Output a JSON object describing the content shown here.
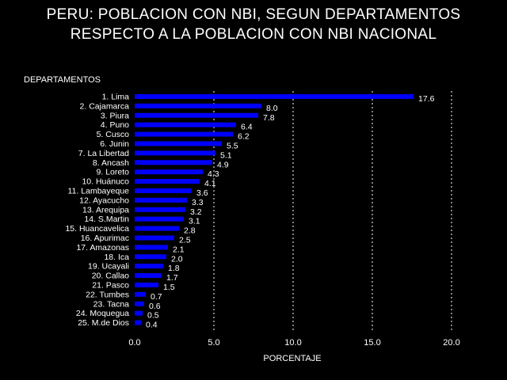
{
  "title_line1": "PERU: POBLACION CON NBI, SEGUN DEPARTAMENTOS",
  "title_line2": "RESPECTO A LA POBLACION CON NBI NACIONAL",
  "colors": {
    "background": "#000000",
    "bar": "#0000ff",
    "text": "#ffffff",
    "gridline": "#ffffff"
  },
  "chart_data": {
    "type": "bar",
    "orientation": "horizontal",
    "ylabel": "DEPARTAMENTOS",
    "xlabel": "PORCENTAJE",
    "xlim": [
      0,
      20
    ],
    "xticks": [
      0,
      5,
      10,
      15,
      20
    ],
    "xtick_labels": [
      "0.0",
      "5.0",
      "10.0",
      "15.0",
      "20.0"
    ],
    "grid": "vertical dashed",
    "categories": [
      "1. Lima",
      "2. Cajamarca",
      "3. Piura",
      "4. Puno",
      "5. Cusco",
      "6. Junin",
      "7. La Libertad",
      "8. Ancash",
      "9. Loreto",
      "10. Huánuco",
      "11. Lambayeque",
      "12. Ayacucho",
      "13. Arequipa",
      "14. S.Martin",
      "15. Huancavelica",
      "16. Apurimac",
      "17. Amazonas",
      "18. Ica",
      "19. Ucayali",
      "20. Callao",
      "21. Pasco",
      "22. Tumbes",
      "23. Tacna",
      "24. Moquegua",
      "25. M.de Dios"
    ],
    "values": [
      17.6,
      8.0,
      7.8,
      6.4,
      6.2,
      5.5,
      5.1,
      4.9,
      4.3,
      4.1,
      3.6,
      3.3,
      3.2,
      3.1,
      2.8,
      2.5,
      2.1,
      2.0,
      1.8,
      1.7,
      1.5,
      0.7,
      0.6,
      0.5,
      0.4
    ],
    "value_labels": [
      "17.6",
      "8.0",
      "7.8",
      "6.4",
      "6.2",
      "5.5",
      "5.1",
      "4.9",
      "4.3",
      "4.1",
      "3.6",
      "3.3",
      "3.2",
      "3.1",
      "2.8",
      "2.5",
      "2.1",
      "2.0",
      "1.8",
      "1.7",
      "1.5",
      "0.7",
      "0.6",
      "0.5",
      "0.4"
    ]
  }
}
